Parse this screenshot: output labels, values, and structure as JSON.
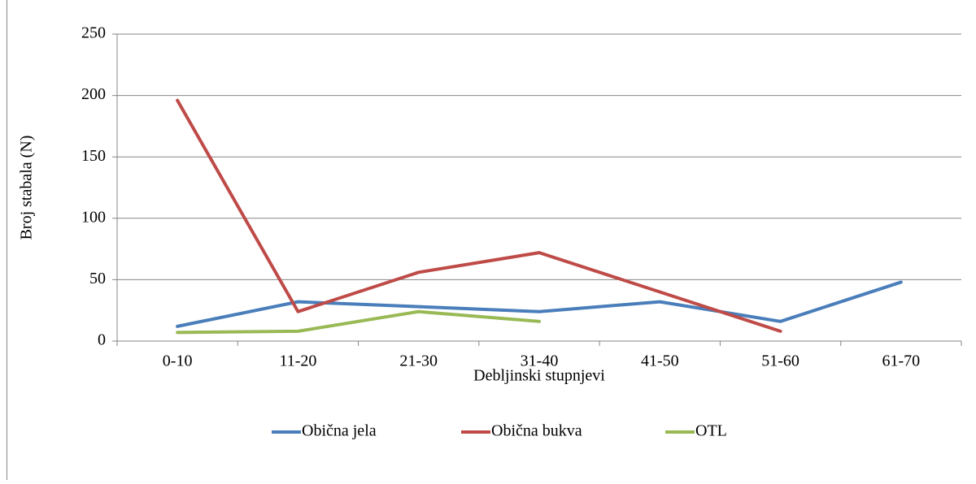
{
  "chart_data": {
    "type": "line",
    "x_label": "Debljinski stupnjevi",
    "y_label": "Broj stabala (N)",
    "categories": [
      "0-10",
      "11-20",
      "21-30",
      "31-40",
      "41-50",
      "51-60",
      "61-70"
    ],
    "series": [
      {
        "name": "Obična jela",
        "color": "#4a7ebb",
        "values": [
          12,
          32,
          28,
          24,
          32,
          16,
          48
        ]
      },
      {
        "name": "Obična bukva",
        "color": "#be4b48",
        "values": [
          196,
          24,
          56,
          72,
          40,
          8,
          null
        ]
      },
      {
        "name": "OTL",
        "color": "#98b954",
        "values": [
          7,
          8,
          24,
          16,
          null,
          null,
          null
        ]
      }
    ],
    "ylim": [
      0,
      250
    ],
    "yticks": [
      0,
      50,
      100,
      150,
      200,
      250
    ],
    "grid": true,
    "legend": "bottom"
  }
}
